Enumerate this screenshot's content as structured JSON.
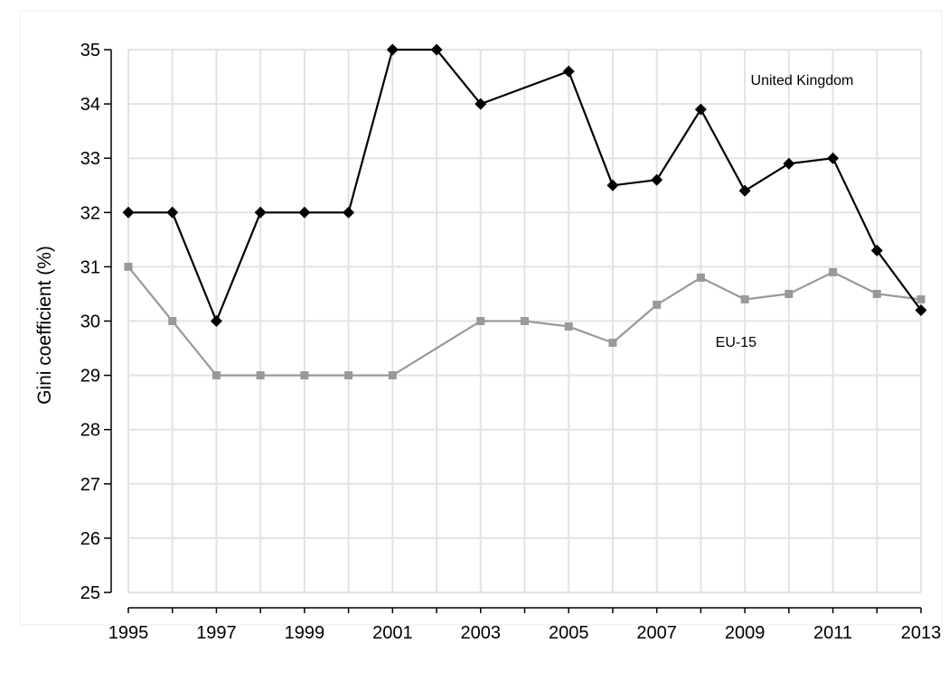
{
  "chart_data": {
    "type": "line",
    "title": "",
    "xlabel": "",
    "ylabel": "Gini coefficient (%)",
    "x": [
      1995,
      1996,
      1997,
      1998,
      1999,
      2000,
      2001,
      2002,
      2003,
      2004,
      2005,
      2006,
      2007,
      2008,
      2009,
      2010,
      2011,
      2012,
      2013
    ],
    "x_ticks": [
      "1995",
      "1997",
      "1999",
      "2001",
      "2003",
      "2005",
      "2007",
      "2009",
      "2011",
      "2013"
    ],
    "y_ticks": [
      "25",
      "26",
      "27",
      "28",
      "29",
      "30",
      "31",
      "32",
      "33",
      "34",
      "35"
    ],
    "xlim": [
      1995,
      2013
    ],
    "ylim": [
      25,
      35
    ],
    "grid": true,
    "legend": "none (direct labels)",
    "series": [
      {
        "name": "United Kingdom",
        "marker": "diamond",
        "color": "#000000",
        "values": [
          32.0,
          32.0,
          30.0,
          32.0,
          32.0,
          32.0,
          35.0,
          35.0,
          34.0,
          null,
          34.6,
          32.5,
          32.6,
          33.9,
          32.4,
          32.9,
          33.0,
          31.3,
          30.2
        ]
      },
      {
        "name": "EU-15",
        "marker": "square",
        "color": "#999999",
        "values": [
          31.0,
          30.0,
          29.0,
          29.0,
          29.0,
          29.0,
          29.0,
          null,
          30.0,
          30.0,
          29.9,
          29.6,
          30.3,
          30.8,
          30.4,
          30.5,
          30.9,
          30.5,
          30.4
        ]
      }
    ],
    "annotations": [
      {
        "text": "United Kingdom",
        "series": "United Kingdom"
      },
      {
        "text": "EU-15",
        "series": "EU-15"
      }
    ]
  }
}
